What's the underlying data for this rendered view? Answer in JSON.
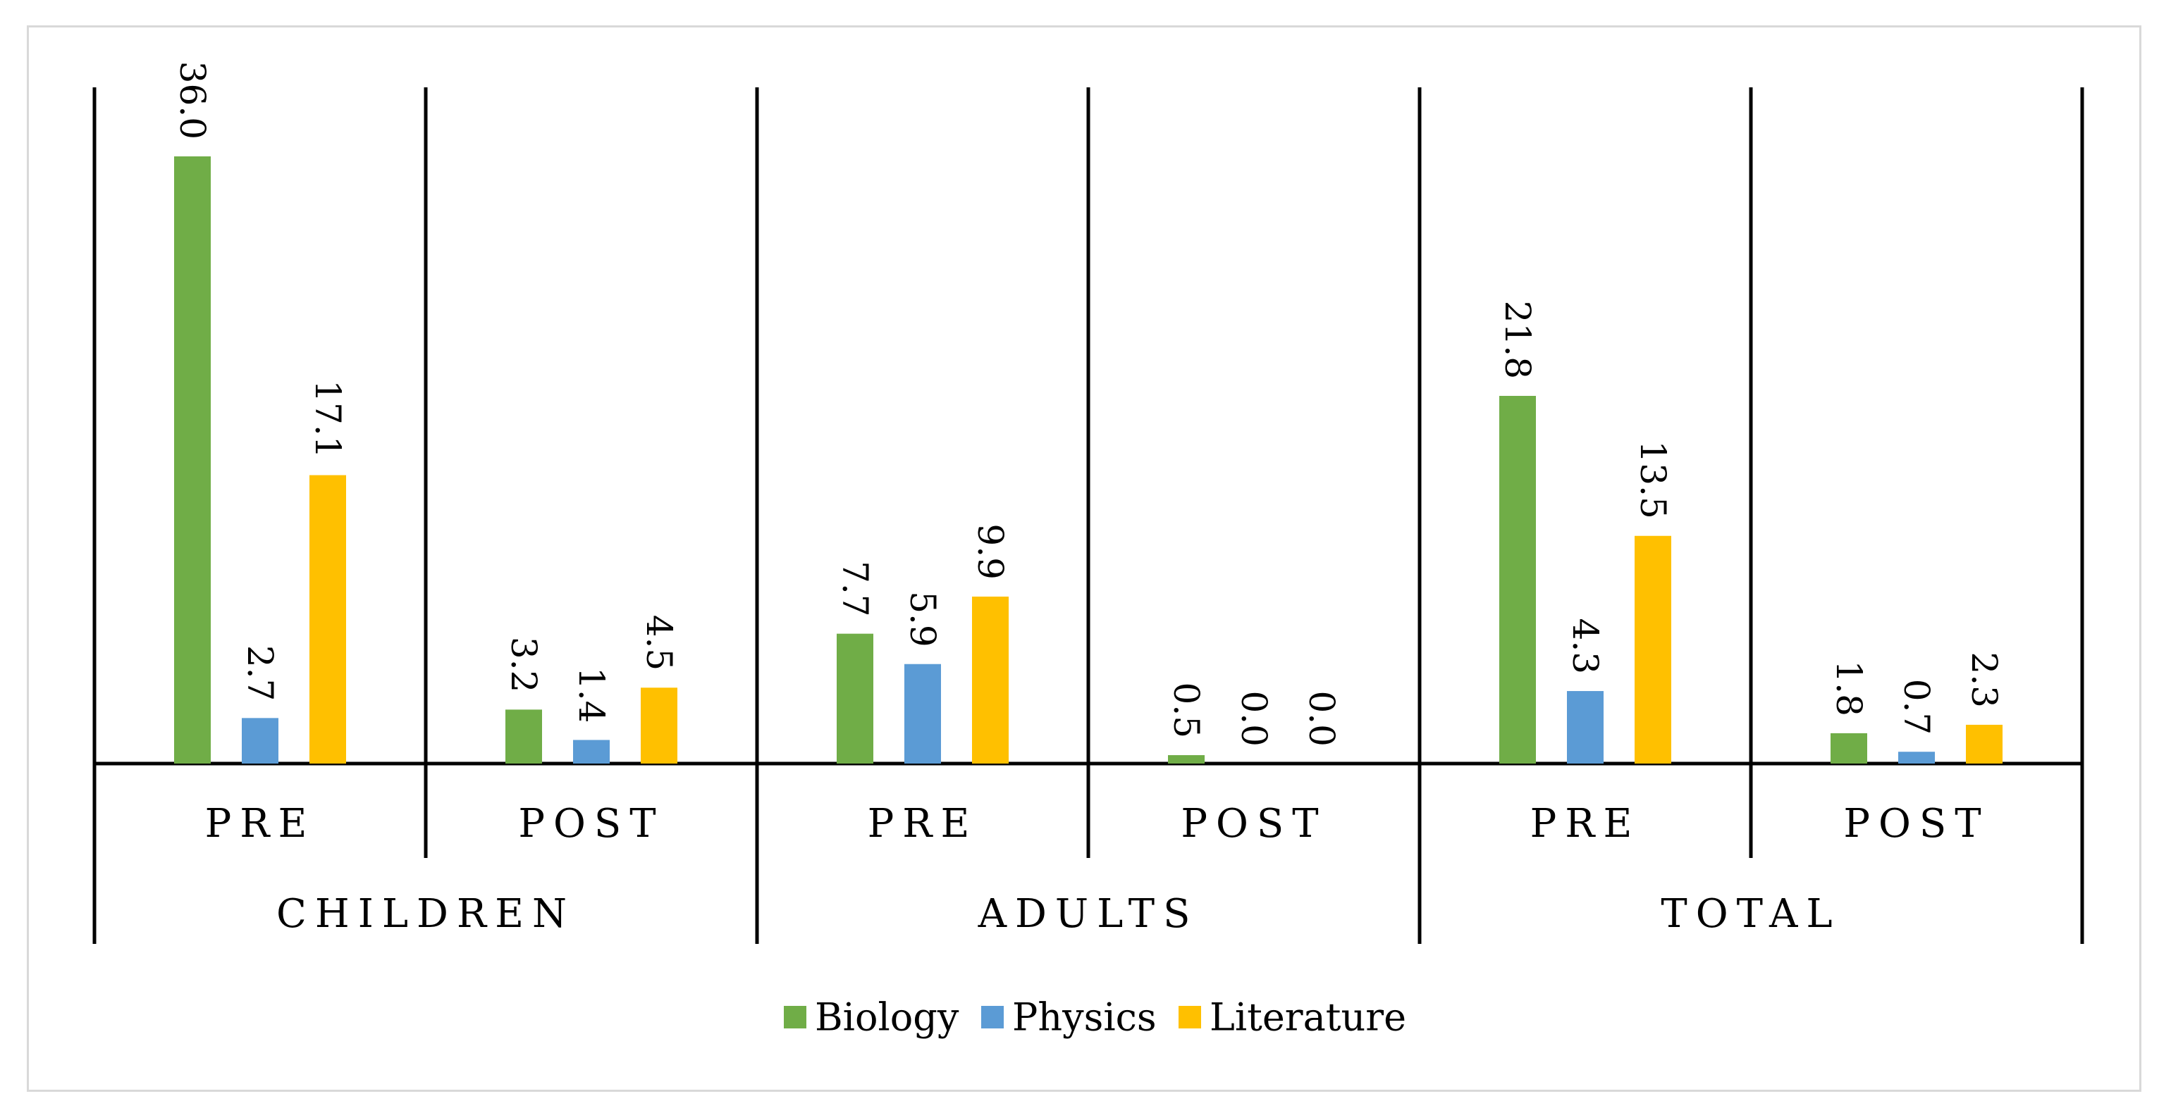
{
  "chart_data": {
    "type": "bar",
    "title": "",
    "xlabel": "",
    "ylabel": "",
    "ylim": [
      0,
      36
    ],
    "groups": [
      "CHILDREN",
      "ADULTS",
      "TOTAL"
    ],
    "categories": [
      "PRE",
      "POST",
      "PRE",
      "POST",
      "PRE",
      "POST"
    ],
    "series": [
      {
        "name": "Biology",
        "color": "#70ad47",
        "values": [
          36.0,
          3.2,
          7.7,
          0.5,
          21.8,
          1.8
        ]
      },
      {
        "name": "Physics",
        "color": "#5b9bd5",
        "values": [
          2.7,
          1.4,
          5.9,
          0.0,
          4.3,
          0.7
        ]
      },
      {
        "name": "Literature",
        "color": "#ffc000",
        "values": [
          17.1,
          4.5,
          9.9,
          0.0,
          13.5,
          2.3
        ]
      }
    ],
    "data_labels": [
      [
        "36.0",
        "3.2",
        "7.7",
        "0.5",
        "21.8",
        "1.8"
      ],
      [
        "2.7",
        "1.4",
        "5.9",
        "0.0",
        "4.3",
        "0.7"
      ],
      [
        "17.1",
        "4.5",
        "9.9",
        "0.0",
        "13.5",
        "2.3"
      ]
    ],
    "legend_position": "bottom",
    "grid": false
  }
}
